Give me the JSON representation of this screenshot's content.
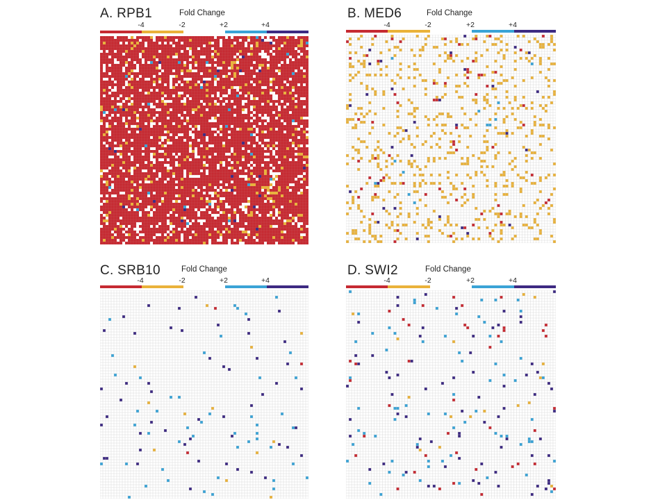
{
  "legend_label": "Fold Change",
  "ticks": [
    "-4",
    "-2",
    "+2",
    "+4"
  ],
  "colors": {
    "strong_down": "#c62a32",
    "down": "#eab23a",
    "neutral": "#ffffff",
    "up": "#3aa3d6",
    "strong_up": "#3d2a82",
    "grid": "#c8c8c8"
  },
  "chart_data": [
    {
      "type": "heatmap",
      "title": "A. RPB1",
      "legend_label": "Fold Change",
      "scale_ticks": [
        "-4",
        "-2",
        "+2",
        "+4"
      ],
      "scale_categories": [
        "< -4",
        "-4 to -2",
        "-2 to +2",
        "+2 to +4",
        "> +4"
      ],
      "cell_fractions": {
        "< -4": 0.8,
        "-4 to -2": 0.05,
        "-2 to +2": 0.14,
        "+2 to +4": 0.006,
        "> +4": 0.004
      }
    },
    {
      "type": "heatmap",
      "title": "B. MED6",
      "legend_label": "Fold Change",
      "scale_ticks": [
        "-4",
        "-2",
        "+2",
        "+4"
      ],
      "scale_categories": [
        "< -4",
        "-4 to -2",
        "-2 to +2",
        "+2 to +4",
        "> +4"
      ],
      "cell_fractions": {
        "< -4": 0.012,
        "-4 to -2": 0.12,
        "-2 to +2": 0.862,
        "+2 to +4": 0.002,
        "> +4": 0.004
      }
    },
    {
      "type": "heatmap",
      "title": "C. SRB10",
      "legend_label": "Fold Change",
      "scale_ticks": [
        "-4",
        "-2",
        "+2",
        "+4"
      ],
      "scale_categories": [
        "< -4",
        "-4 to -2",
        "-2 to +2",
        "+2 to +4",
        "> +4"
      ],
      "cell_fractions": {
        "< -4": 0.0005,
        "-4 to -2": 0.002,
        "-2 to +2": 0.9765,
        "+2 to +4": 0.011,
        "> +4": 0.01
      }
    },
    {
      "type": "heatmap",
      "title": "D. SWI2",
      "legend_label": "Fold Change",
      "scale_ticks": [
        "-4",
        "-2",
        "+2",
        "+4"
      ],
      "scale_categories": [
        "< -4",
        "-4 to -2",
        "-2 to +2",
        "+2 to +4",
        "> +4"
      ],
      "cell_fractions": {
        "< -4": 0.006,
        "-4 to -2": 0.004,
        "-2 to +2": 0.966,
        "+2 to +4": 0.012,
        "> +4": 0.012
      }
    }
  ]
}
